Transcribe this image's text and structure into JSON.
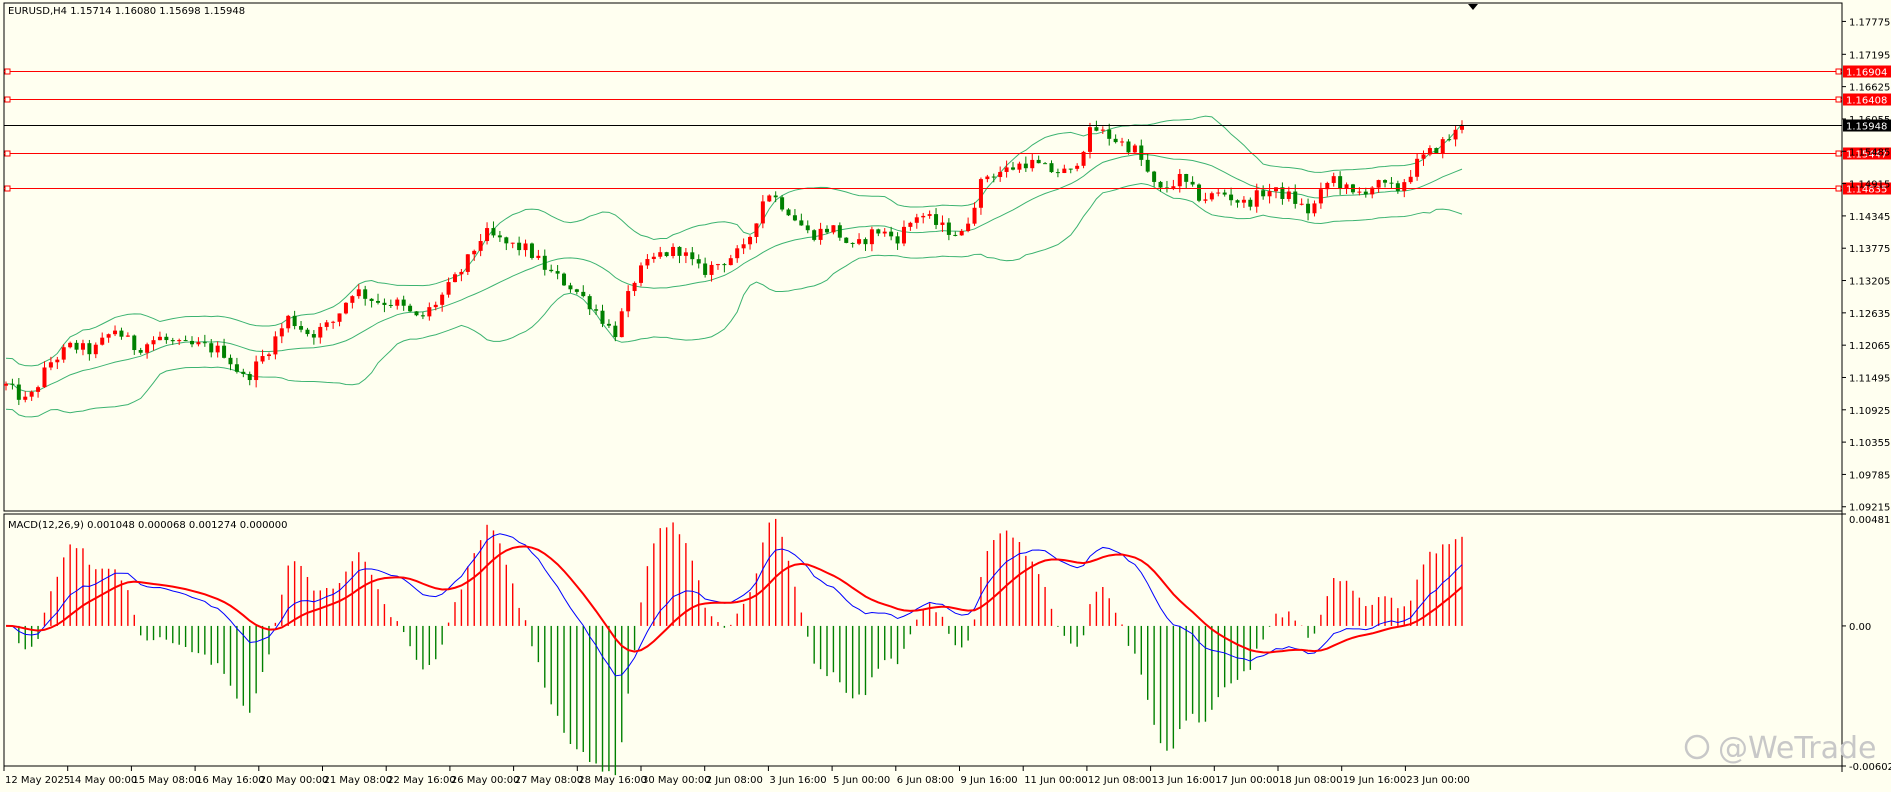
{
  "header": {
    "symbol_label": "EURUSD,H4  1.15714 1.16080 1.15698 1.15948"
  },
  "macd": {
    "label": "MACD(12,26,9) 0.001048 0.000068 0.001274 0.000000",
    "ticks": [
      "0.00481",
      "0.00",
      "-0.00602"
    ]
  },
  "watermark": "@WeTrade",
  "colors": {
    "bg": "#fffff0",
    "bull": "#ff0000",
    "bear": "#008000",
    "bands": "#3cb371",
    "level": "#ff0000",
    "current": "#000000",
    "macd_line": "#0000ff",
    "signal_line": "#ff0000"
  },
  "chart_data": {
    "type": "candlestick",
    "symbol": "EURUSD",
    "timeframe": "H4",
    "ohlc_last": {
      "open": 1.15714,
      "high": 1.1608,
      "low": 1.15698,
      "close": 1.15948
    },
    "price_axis_ticks": [
      "1.17775",
      "1.17195",
      "1.16625",
      "1.16055",
      "1.15485",
      "1.14915",
      "1.14345",
      "1.13775",
      "1.13205",
      "1.12635",
      "1.12065",
      "1.11495",
      "1.10925",
      "1.10355",
      "1.09785",
      "1.09215"
    ],
    "ylim": [
      1.0914,
      1.181
    ],
    "horizontal_levels": [
      {
        "value": 1.16904,
        "label": "1.16904",
        "color": "#ff0000"
      },
      {
        "value": 1.16408,
        "label": "1.16408",
        "color": "#ff0000"
      },
      {
        "value": 1.15948,
        "label": "1.15948",
        "color": "#000000"
      },
      {
        "value": 1.15447,
        "label": "1.15447",
        "color": "#ff0000"
      },
      {
        "value": 1.14835,
        "label": "1.14835",
        "color": "#ff0000"
      }
    ],
    "time_labels": [
      "12 May 2025",
      "14 May 00:00",
      "15 May 08:00",
      "16 May 16:00",
      "20 May 00:00",
      "21 May 08:00",
      "22 May 16:00",
      "26 May 00:00",
      "27 May 08:00",
      "28 May 16:00",
      "30 May 00:00",
      "2 Jun 08:00",
      "3 Jun 16:00",
      "5 Jun 00:00",
      "6 Jun 08:00",
      "9 Jun 16:00",
      "11 Jun 00:00",
      "12 Jun 08:00",
      "13 Jun 16:00",
      "17 Jun 00:00",
      "18 Jun 08:00",
      "19 Jun 16:00",
      "23 Jun 00:00"
    ],
    "price_path": [
      1.1135,
      1.1105,
      1.1175,
      1.1205,
      1.1195,
      1.1235,
      1.12,
      1.122,
      1.1205,
      1.1205,
      1.1195,
      1.1145,
      1.1195,
      1.1255,
      1.1225,
      1.1245,
      1.1305,
      1.1285,
      1.128,
      1.125,
      1.129,
      1.134,
      1.1405,
      1.1385,
      1.1375,
      1.1335,
      1.131,
      1.1275,
      1.1225,
      1.133,
      1.1365,
      1.1375,
      1.1335,
      1.1355,
      1.1375,
      1.148,
      1.1445,
      1.14,
      1.1415,
      1.1375,
      1.141,
      1.1395,
      1.144,
      1.1415,
      1.14,
      1.1505,
      1.1515,
      1.153,
      1.1515,
      1.151,
      1.159,
      1.157,
      1.155,
      1.1475,
      1.15,
      1.1465,
      1.1475,
      1.1455,
      1.148,
      1.147,
      1.144,
      1.1505,
      1.147,
      1.149,
      1.148,
      1.153,
      1.156,
      1.159
    ],
    "bollinger": {
      "period": 20,
      "bands": [
        "upper",
        "middle",
        "lower"
      ]
    },
    "macd": {
      "fast": 12,
      "slow": 26,
      "signal": 9,
      "values": [
        0.001048,
        6.8e-05,
        0.001274,
        0.0
      ],
      "ylim": [
        -0.00602,
        0.00481
      ]
    }
  }
}
